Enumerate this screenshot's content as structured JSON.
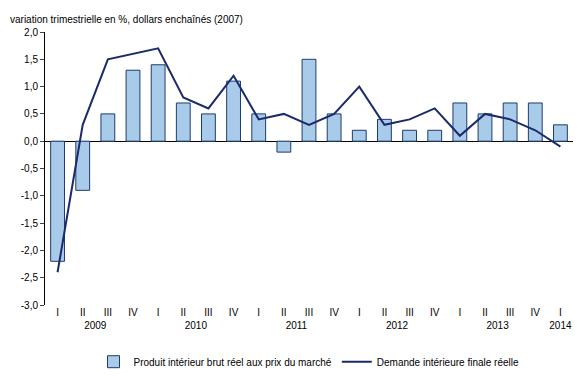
{
  "chart_data": {
    "type": "bar",
    "y_label": "variation trimestrielle en %, dollars enchaînés (2007)",
    "categories": [
      "I",
      "II",
      "III",
      "IV",
      "I",
      "II",
      "III",
      "IV",
      "I",
      "II",
      "III",
      "IV",
      "I",
      "II",
      "III",
      "IV",
      "I",
      "II",
      "III",
      "IV",
      "I"
    ],
    "category_groups": [
      "2009",
      "2009",
      "2009",
      "2009",
      "2010",
      "2010",
      "2010",
      "2010",
      "2011",
      "2011",
      "2011",
      "2011",
      "2012",
      "2012",
      "2012",
      "2012",
      "2013",
      "2013",
      "2013",
      "2013",
      "2014"
    ],
    "series": [
      {
        "name": "Produit intérieur brut réel aux prix du marché",
        "type": "bar",
        "color": "#a9cbea",
        "values": [
          -2.2,
          -0.9,
          0.5,
          1.3,
          1.4,
          0.7,
          0.5,
          1.1,
          0.5,
          -0.2,
          1.5,
          0.5,
          0.2,
          0.4,
          0.2,
          0.2,
          0.7,
          0.5,
          0.7,
          0.7,
          0.3
        ]
      },
      {
        "name": "Demande intérieure finale réelle",
        "type": "line",
        "color": "#1b2a6b",
        "values": [
          -2.4,
          0.3,
          1.5,
          1.6,
          1.7,
          0.8,
          0.6,
          1.2,
          0.4,
          0.5,
          0.3,
          0.5,
          1.0,
          0.3,
          0.4,
          0.6,
          0.1,
          0.5,
          0.4,
          0.2,
          -0.1
        ]
      }
    ],
    "ylim": [
      -3,
      2
    ],
    "yticks": [
      {
        "value": -3,
        "label": "-3,0"
      },
      {
        "value": -2.5,
        "label": "-2,5"
      },
      {
        "value": -2,
        "label": "-2,0"
      },
      {
        "value": -1.5,
        "label": "-1,5"
      },
      {
        "value": -1,
        "label": "-1,0"
      },
      {
        "value": -0.5,
        "label": "-0,5"
      },
      {
        "value": 0,
        "label": "0,0"
      },
      {
        "value": 0.5,
        "label": "0,5"
      },
      {
        "value": 1,
        "label": "1,0"
      },
      {
        "value": 1.5,
        "label": "1,5"
      },
      {
        "value": 2,
        "label": "2,0"
      }
    ],
    "grid": false,
    "legend": "bottom"
  }
}
